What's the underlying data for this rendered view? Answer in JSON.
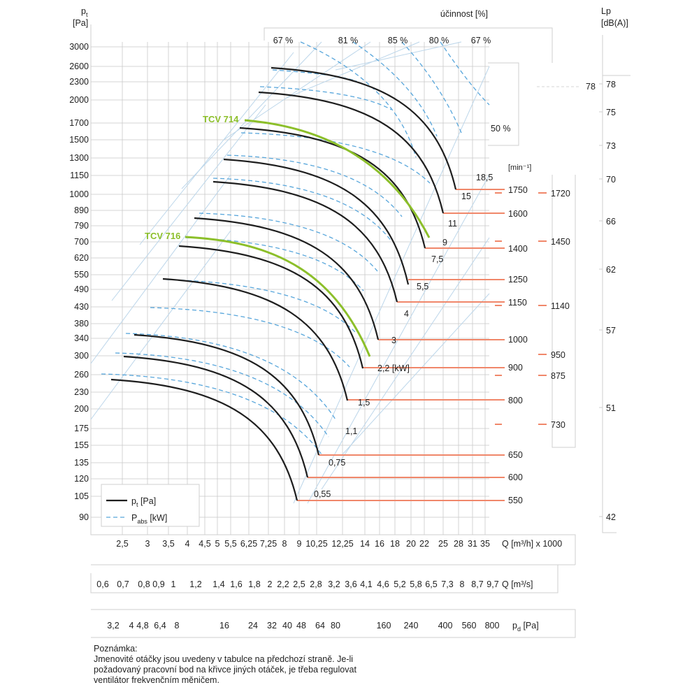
{
  "chart_data": {
    "type": "line",
    "y_axis": {
      "label_top": "p",
      "label_sub": "t",
      "unit": "[Pa]",
      "ticks": [
        "3000",
        "2600",
        "2300",
        "2000",
        "1700",
        "1500",
        "1300",
        "1150",
        "1000",
        "890",
        "790",
        "700",
        "620",
        "550",
        "490",
        "430",
        "380",
        "340",
        "300",
        "260",
        "230",
        "200",
        "175",
        "155",
        "135",
        "120",
        "105",
        "90"
      ]
    },
    "x_axis_flow_h": {
      "label": "Q [m³/h] x 1000",
      "ticks": [
        "2,5",
        "3",
        "3,5",
        "4",
        "4,5",
        "5",
        "5,5",
        "6,25",
        "7,25",
        "8",
        "9",
        "10,25",
        "12,25",
        "14",
        "16",
        "18",
        "20",
        "22",
        "25",
        "28",
        "31",
        "35"
      ]
    },
    "x_axis_flow_s": {
      "label": "Q [m³/s]",
      "ticks": [
        "0,6",
        "0,7",
        "0,8",
        "0,9",
        "1",
        "1,2",
        "1,4",
        "1,6",
        "1,8",
        "2",
        "2,2",
        "2,5",
        "2,8",
        "3,2",
        "3,6",
        "4,1",
        "4,6",
        "5,2",
        "5,8",
        "6,5",
        "7,3",
        "8",
        "8,7",
        "9,7"
      ]
    },
    "x_axis_pd": {
      "label": "p",
      "label_sub": "d",
      "unit": "[Pa]",
      "ticks": [
        "3,2",
        "4",
        "4,8",
        "6,4",
        "8",
        "16",
        "24",
        "32",
        "40",
        "48",
        "64",
        "80",
        "160",
        "240",
        "400",
        "560",
        "800"
      ]
    },
    "efficiency": {
      "title": "účinnost [%]",
      "labels": [
        "67 %",
        "81 %",
        "85 %",
        "80 %",
        "67 %"
      ],
      "side_label": "50 %"
    },
    "lp_axis": {
      "title": "Lp",
      "unit": "[dB(A)]",
      "ticks": [
        "78",
        "75",
        "73",
        "70",
        "66",
        "62",
        "57",
        "51",
        "42"
      ],
      "marker": "78"
    },
    "rpm_unit": "[min⁻¹]",
    "series": [
      {
        "name": "TCV 714",
        "power_kw": [
          "18,5",
          "15",
          "11",
          "9",
          "7,5",
          "5,5",
          "4",
          "3",
          "2,2 [kW]"
        ],
        "rpm": [
          "1750",
          "1600",
          "1400",
          "1250",
          "1150",
          "1000",
          "900"
        ]
      },
      {
        "name": "TCV 716",
        "power_kw": [
          "1,5",
          "1,1",
          "0,75",
          "0,55"
        ],
        "rpm": [
          "800",
          "650",
          "600",
          "550"
        ]
      }
    ],
    "rpm_side": [
      "1720",
      "1450",
      "1140",
      "950",
      "875",
      "730"
    ],
    "legend": [
      {
        "name": "p",
        "sub": "t",
        "unit": "[Pa]",
        "style": "solid"
      },
      {
        "name": "P",
        "sub": "abs",
        "unit": "[kW]",
        "style": "dashed"
      }
    ],
    "legend_position": "bottom-left",
    "colors": {
      "curve": "#1e1e1e",
      "highlight": "#8cbf2a",
      "efficiency": "#58a6db",
      "rpm": "#f0876a"
    }
  },
  "note": {
    "title": "Poznámka:",
    "lines": [
      "Jmenovité otáčky jsou uvedeny v tabulce na předchozí straně. Je-li",
      "požadovaný pracovní bod na křivce jiných otáček, je třeba regulovat",
      "ventilátor frekvenčním měničem."
    ]
  }
}
